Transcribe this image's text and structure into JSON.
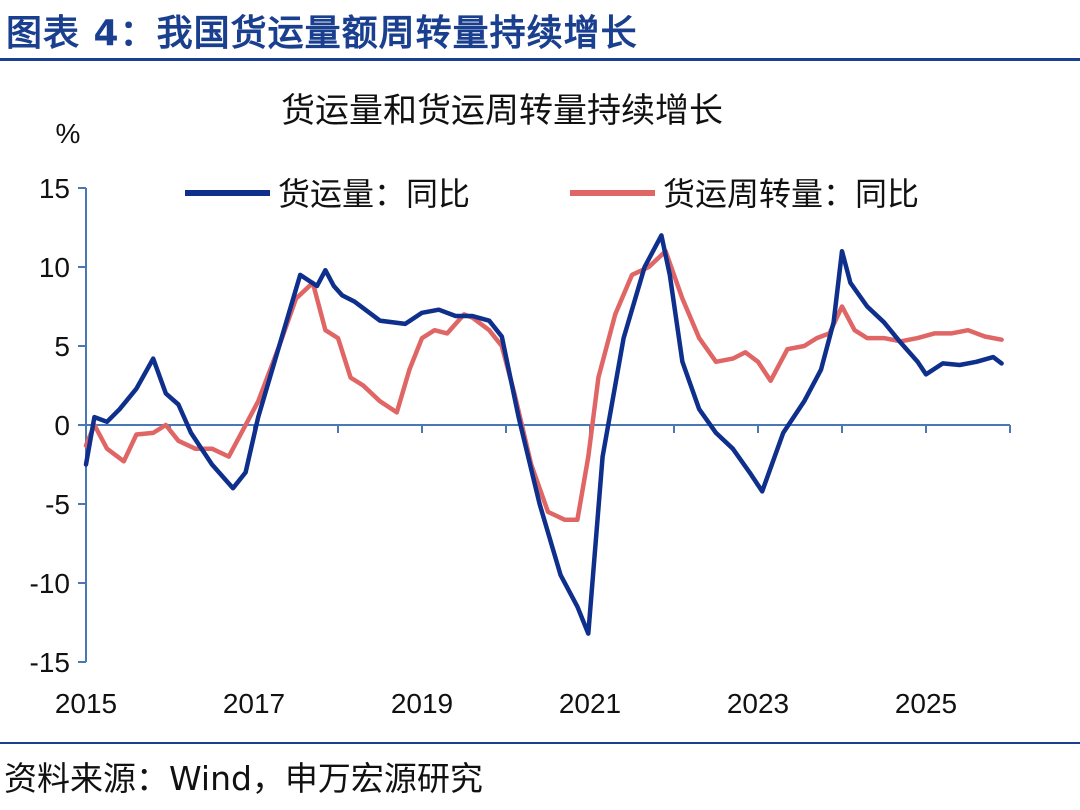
{
  "figure": {
    "title": "图表 4：我国货运量额周转量持续增长",
    "source": "资料来源：Wind，申万宏源研究"
  },
  "chart_data": {
    "type": "line",
    "title": "货运量和货运周转量持续增长",
    "ylabel": "%",
    "ylim": [
      -15,
      15
    ],
    "yticks": [
      15,
      10,
      5,
      0,
      -5,
      -10,
      -15
    ],
    "xlim": [
      2015,
      2026
    ],
    "xticks": [
      2015,
      2017,
      2019,
      2021,
      2023,
      2025
    ],
    "legend": "top",
    "grid": false,
    "colors": {
      "axis": "#4a78b5",
      "series1": "#0e2f8c",
      "series2": "#e06666"
    },
    "series": [
      {
        "name": "货运量：同比",
        "x": [
          2015.0,
          2015.1,
          2015.25,
          2015.4,
          2015.6,
          2015.8,
          2015.95,
          2016.1,
          2016.25,
          2016.5,
          2016.75,
          2016.9,
          2017.05,
          2017.3,
          2017.55,
          2017.75,
          2017.85,
          2017.95,
          2018.05,
          2018.2,
          2018.5,
          2018.8,
          2019.0,
          2019.2,
          2019.4,
          2019.6,
          2019.8,
          2019.95,
          2020.15,
          2020.4,
          2020.65,
          2020.85,
          2020.98,
          2021.15,
          2021.4,
          2021.65,
          2021.85,
          2021.95,
          2022.1,
          2022.3,
          2022.5,
          2022.7,
          2022.9,
          2023.05,
          2023.3,
          2023.55,
          2023.75,
          2023.9,
          2024.0,
          2024.1,
          2024.3,
          2024.5,
          2024.7,
          2024.9,
          2025.0,
          2025.2,
          2025.4,
          2025.6,
          2025.8,
          2025.9
        ],
        "values": [
          -2.5,
          0.5,
          0.2,
          1.0,
          2.3,
          4.2,
          2.0,
          1.3,
          -0.5,
          -2.5,
          -4.0,
          -3.0,
          0.5,
          5.0,
          9.5,
          8.8,
          9.8,
          8.8,
          8.2,
          7.8,
          6.6,
          6.4,
          7.1,
          7.3,
          6.9,
          6.9,
          6.6,
          5.6,
          0.5,
          -5.0,
          -9.5,
          -11.5,
          -13.2,
          -2.0,
          5.5,
          10.0,
          12.0,
          9.5,
          4.0,
          1.0,
          -0.5,
          -1.5,
          -3.0,
          -4.2,
          -0.5,
          1.5,
          3.5,
          6.5,
          11.0,
          9.0,
          7.5,
          6.5,
          5.2,
          4.0,
          3.2,
          3.9,
          3.8,
          4.0,
          4.3,
          3.9
        ]
      },
      {
        "name": "货运周转量：同比",
        "x": [
          2015.0,
          2015.1,
          2015.25,
          2015.45,
          2015.6,
          2015.8,
          2015.95,
          2016.1,
          2016.3,
          2016.5,
          2016.7,
          2016.9,
          2017.05,
          2017.3,
          2017.5,
          2017.7,
          2017.85,
          2018.0,
          2018.15,
          2018.3,
          2018.5,
          2018.7,
          2018.85,
          2019.0,
          2019.15,
          2019.3,
          2019.5,
          2019.6,
          2019.8,
          2019.95,
          2020.1,
          2020.3,
          2020.5,
          2020.7,
          2020.85,
          2020.98,
          2021.1,
          2021.3,
          2021.5,
          2021.7,
          2021.9,
          2022.1,
          2022.3,
          2022.5,
          2022.7,
          2022.85,
          2023.0,
          2023.15,
          2023.35,
          2023.55,
          2023.7,
          2023.85,
          2024.0,
          2024.15,
          2024.3,
          2024.5,
          2024.7,
          2024.9,
          2025.1,
          2025.3,
          2025.5,
          2025.7,
          2025.9
        ],
        "values": [
          -1.3,
          0.0,
          -1.5,
          -2.3,
          -0.6,
          -0.5,
          0.0,
          -1.0,
          -1.5,
          -1.5,
          -2.0,
          0.0,
          1.5,
          5.0,
          8.0,
          9.0,
          6.0,
          5.5,
          3.0,
          2.5,
          1.5,
          0.8,
          3.5,
          5.5,
          6.0,
          5.8,
          7.0,
          6.8,
          6.0,
          5.0,
          2.0,
          -2.5,
          -5.5,
          -6.0,
          -6.0,
          -2.0,
          3.0,
          7.0,
          9.5,
          10.0,
          11.0,
          8.0,
          5.5,
          4.0,
          4.2,
          4.6,
          4.0,
          2.8,
          4.8,
          5.0,
          5.5,
          5.8,
          7.5,
          6.0,
          5.5,
          5.5,
          5.3,
          5.5,
          5.8,
          5.8,
          6.0,
          5.6,
          5.4
        ]
      }
    ]
  }
}
